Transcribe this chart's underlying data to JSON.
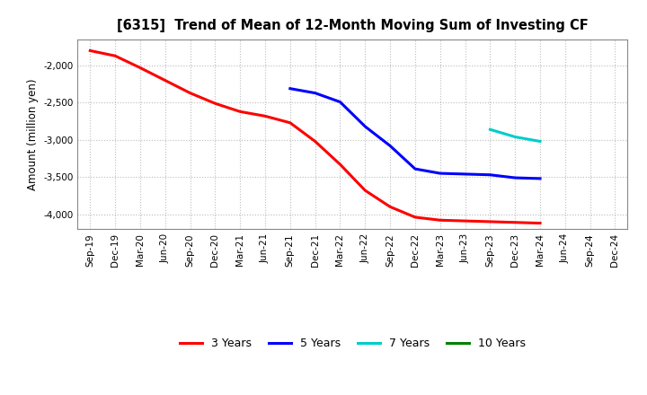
{
  "title": "[6315]  Trend of Mean of 12-Month Moving Sum of Investing CF",
  "ylabel": "Amount (million yen)",
  "ylim": [
    -4200,
    -1650
  ],
  "yticks": [
    -4000,
    -3500,
    -3000,
    -2500,
    -2000
  ],
  "background_color": "#ffffff",
  "plot_bg_color": "#ffffff",
  "grid_color": "#aaaaaa",
  "series": {
    "3years": {
      "color": "#ff0000",
      "label": "3 Years",
      "x": [
        "Sep-19",
        "Dec-19",
        "Mar-20",
        "Jun-20",
        "Sep-20",
        "Dec-20",
        "Mar-21",
        "Jun-21",
        "Sep-21",
        "Dec-21",
        "Mar-22",
        "Jun-22",
        "Sep-22",
        "Dec-22",
        "Mar-23",
        "Jun-23",
        "Sep-23",
        "Dec-23",
        "Mar-24"
      ],
      "y": [
        -1800,
        -1870,
        -2030,
        -2200,
        -2370,
        -2510,
        -2620,
        -2680,
        -2770,
        -3020,
        -3330,
        -3680,
        -3900,
        -4040,
        -4080,
        -4090,
        -4100,
        -4110,
        -4120
      ]
    },
    "5years": {
      "color": "#0000ff",
      "label": "5 Years",
      "x": [
        "Sep-21",
        "Dec-21",
        "Mar-22",
        "Jun-22",
        "Sep-22",
        "Dec-22",
        "Mar-23",
        "Jun-23",
        "Sep-23",
        "Dec-23",
        "Mar-24"
      ],
      "y": [
        -2310,
        -2370,
        -2490,
        -2820,
        -3080,
        -3390,
        -3450,
        -3460,
        -3470,
        -3510,
        -3520
      ]
    },
    "7years": {
      "color": "#00cccc",
      "label": "7 Years",
      "x": [
        "Sep-23",
        "Dec-23",
        "Mar-24"
      ],
      "y": [
        -2860,
        -2960,
        -3020
      ]
    },
    "10years": {
      "color": "#008000",
      "label": "10 Years",
      "x": [],
      "y": []
    }
  },
  "xtick_labels": [
    "Sep-19",
    "Dec-19",
    "Mar-20",
    "Jun-20",
    "Sep-20",
    "Dec-20",
    "Mar-21",
    "Jun-21",
    "Sep-21",
    "Dec-21",
    "Mar-22",
    "Jun-22",
    "Sep-22",
    "Dec-22",
    "Mar-23",
    "Jun-23",
    "Sep-23",
    "Dec-23",
    "Mar-24",
    "Jun-24",
    "Sep-24",
    "Dec-24"
  ],
  "linewidth": 2.2
}
